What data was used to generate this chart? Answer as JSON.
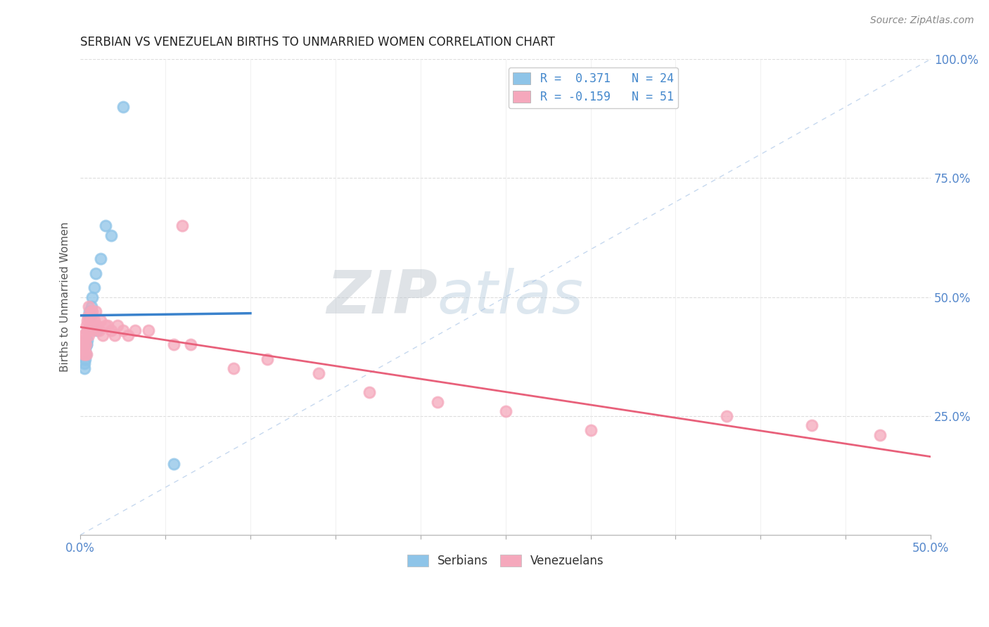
{
  "title": "SERBIAN VS VENEZUELAN BIRTHS TO UNMARRIED WOMEN CORRELATION CHART",
  "source": "Source: ZipAtlas.com",
  "ylabel": "Births to Unmarried Women",
  "xlim": [
    0.0,
    50.0
  ],
  "ylim": [
    0.0,
    100.0
  ],
  "right_yticks": [
    25.0,
    50.0,
    75.0,
    100.0
  ],
  "legend_serbian": "R =  0.371   N = 24",
  "legend_venezuelan": "R = -0.159   N = 51",
  "serbian_color": "#8ec4e8",
  "venezuelan_color": "#f5a8bc",
  "serbian_line_color": "#3a82cc",
  "venezuelan_line_color": "#e8607a",
  "ref_line_color": "#aec8e8",
  "background_color": "#ffffff",
  "watermark_zip": "ZIP",
  "watermark_atlas": "atlas",
  "serbian_x": [
    0.18,
    0.22,
    0.25,
    0.28,
    0.3,
    0.32,
    0.35,
    0.38,
    0.4,
    0.42,
    0.45,
    0.5,
    0.55,
    0.6,
    0.65,
    0.7,
    0.8,
    0.9,
    1.0,
    1.2,
    1.5,
    1.8,
    2.5,
    5.5
  ],
  "serbian_y": [
    38.0,
    36.0,
    35.0,
    37.0,
    39.0,
    38.0,
    40.0,
    40.0,
    41.0,
    43.0,
    43.0,
    46.0,
    47.0,
    46.0,
    48.0,
    50.0,
    52.0,
    55.0,
    43.0,
    58.0,
    65.0,
    63.0,
    90.0,
    15.0
  ],
  "venezuelan_x": [
    0.12,
    0.15,
    0.18,
    0.2,
    0.22,
    0.25,
    0.28,
    0.3,
    0.32,
    0.35,
    0.38,
    0.4,
    0.42,
    0.45,
    0.48,
    0.5,
    0.55,
    0.58,
    0.6,
    0.65,
    0.7,
    0.75,
    0.8,
    0.85,
    0.9,
    1.0,
    1.1,
    1.2,
    1.3,
    1.5,
    1.6,
    1.8,
    2.0,
    2.2,
    2.5,
    2.8,
    3.2,
    4.0,
    5.5,
    6.0,
    6.5,
    9.0,
    11.0,
    14.0,
    17.0,
    21.0,
    25.0,
    30.0,
    38.0,
    43.0,
    47.0
  ],
  "venezuelan_y": [
    40.0,
    42.0,
    38.0,
    40.0,
    39.0,
    41.0,
    38.0,
    42.0,
    40.0,
    44.0,
    38.0,
    43.0,
    45.0,
    46.0,
    42.0,
    48.0,
    43.0,
    44.0,
    45.0,
    47.0,
    47.0,
    43.0,
    45.0,
    44.0,
    47.0,
    44.0,
    43.0,
    45.0,
    42.0,
    44.0,
    44.0,
    43.0,
    42.0,
    44.0,
    43.0,
    42.0,
    43.0,
    43.0,
    40.0,
    65.0,
    40.0,
    35.0,
    37.0,
    34.0,
    30.0,
    28.0,
    26.0,
    22.0,
    25.0,
    23.0,
    21.0
  ]
}
